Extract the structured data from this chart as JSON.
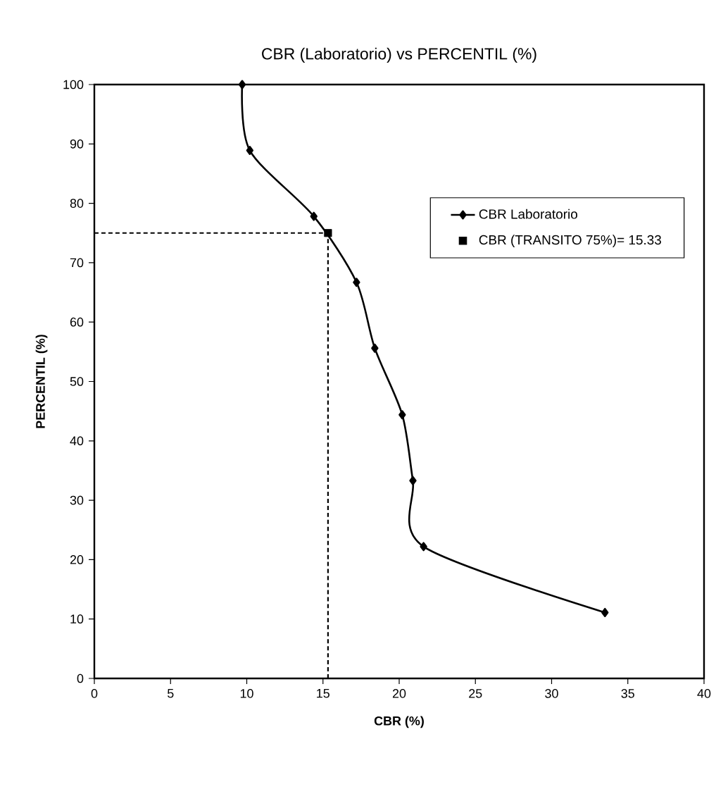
{
  "chart_data": {
    "type": "line",
    "title": "CBR (Laboratorio) vs PERCENTIL (%)",
    "xlabel": "CBR (%)",
    "ylabel": "PERCENTIL (%)",
    "series": [
      {
        "name": "CBR Laboratorio",
        "color": "#000000",
        "marker": "diamond",
        "x": [
          9.7,
          10.2,
          14.4,
          17.2,
          18.4,
          20.2,
          20.9,
          21.6,
          33.5
        ],
        "values": [
          100,
          88.9,
          77.8,
          66.7,
          55.6,
          44.4,
          33.3,
          22.2,
          11.1
        ]
      },
      {
        "name": "CBR (TRANSITO 75%)= 15.33",
        "type": "scatter",
        "color": "#000000",
        "marker": "square",
        "x": [
          15.33
        ],
        "values": [
          75
        ]
      }
    ],
    "xlim": [
      0,
      40
    ],
    "ylim": [
      0,
      100
    ],
    "xticks": [
      0,
      5,
      10,
      15,
      20,
      25,
      30,
      35,
      40
    ],
    "yticks": [
      0,
      10,
      20,
      30,
      40,
      50,
      60,
      70,
      80,
      90,
      100
    ],
    "ref_lines": [
      {
        "axis": "x",
        "value": 15.33,
        "color": "#000000",
        "line_style": "dashed"
      },
      {
        "axis": "y",
        "value": 75,
        "color": "#000000",
        "line_style": "dashed"
      }
    ],
    "grid": false,
    "legend": "top right"
  }
}
